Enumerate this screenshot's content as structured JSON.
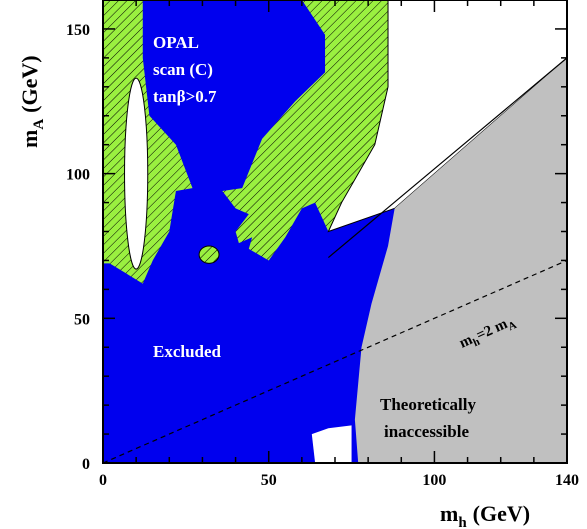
{
  "chart_data": {
    "type": "area",
    "title": "",
    "xlabel": "m",
    "xlabel_sub": "h",
    "xlabel_unit": "(GeV)",
    "ylabel": "m",
    "ylabel_sub": "A",
    "ylabel_unit": "(GeV)",
    "xlim": [
      0,
      140
    ],
    "ylim": [
      0,
      160
    ],
    "xticks": [
      "0",
      "50",
      "100",
      "140"
    ],
    "yticks": [
      "0",
      "50",
      "100",
      "150"
    ],
    "grid": false,
    "annotations": {
      "title_line1": "OPAL",
      "title_line2": "scan (C)",
      "title_line3": "tanβ>0.7",
      "excluded": "Excluded",
      "theory_line1": "Theoretically",
      "theory_line2": "inaccessible",
      "line_m": "m",
      "line_sub": "h",
      "line_rest": "=2 m",
      "line_sub2": "A"
    },
    "colors": {
      "excluded": "#0000ee",
      "hatched": "#9af040",
      "theory": "#c0c0c0"
    },
    "regions": {
      "theory": [
        [
          77,
          0
        ],
        [
          76,
          15
        ],
        [
          78,
          40
        ],
        [
          81,
          55
        ],
        [
          86,
          75
        ],
        [
          88,
          88
        ],
        [
          140,
          140
        ],
        [
          140,
          0
        ]
      ],
      "white_top_right": [
        [
          68,
          80
        ],
        [
          72,
          90
        ],
        [
          82,
          110
        ],
        [
          86,
          130
        ],
        [
          86,
          160
        ],
        [
          140,
          160
        ],
        [
          140,
          140
        ],
        [
          88,
          88
        ]
      ],
      "excluded_blue": [
        [
          0,
          69
        ],
        [
          2,
          69
        ],
        [
          12,
          62
        ],
        [
          15,
          70
        ],
        [
          20,
          80
        ],
        [
          22,
          94
        ],
        [
          30,
          92
        ],
        [
          35,
          90
        ],
        [
          40,
          88
        ],
        [
          44,
          86
        ],
        [
          40,
          80
        ],
        [
          41,
          76
        ],
        [
          45,
          78
        ],
        [
          44,
          74
        ],
        [
          50,
          70
        ],
        [
          55,
          78
        ],
        [
          60,
          88
        ],
        [
          64,
          90
        ],
        [
          66,
          85
        ],
        [
          67,
          74
        ],
        [
          70,
          72
        ],
        [
          72,
          70
        ],
        [
          86,
          80
        ],
        [
          88,
          88
        ],
        [
          80,
          55
        ],
        [
          78,
          40
        ],
        [
          76,
          15
        ],
        [
          75,
          5
        ],
        [
          68,
          9
        ],
        [
          63,
          8
        ],
        [
          64,
          0
        ],
        [
          0,
          0
        ]
      ],
      "hatched_left": [
        [
          0,
          160
        ],
        [
          12,
          160
        ],
        [
          12,
          140
        ],
        [
          14,
          120
        ],
        [
          22,
          110
        ],
        [
          27,
          95
        ],
        [
          22,
          94
        ],
        [
          20,
          80
        ],
        [
          15,
          70
        ],
        [
          12,
          62
        ],
        [
          2,
          69
        ],
        [
          0,
          69
        ]
      ],
      "hatched_right": [
        [
          45,
          160
        ],
        [
          60,
          160
        ],
        [
          67,
          148
        ],
        [
          67,
          135
        ],
        [
          58,
          125
        ],
        [
          48,
          112
        ],
        [
          42,
          95
        ],
        [
          36,
          94
        ],
        [
          40,
          88
        ],
        [
          44,
          86
        ],
        [
          40,
          80
        ],
        [
          41,
          76
        ],
        [
          45,
          78
        ],
        [
          44,
          74
        ],
        [
          50,
          70
        ],
        [
          55,
          78
        ],
        [
          60,
          88
        ],
        [
          64,
          90
        ],
        [
          66,
          85
        ],
        [
          68,
          80
        ],
        [
          72,
          90
        ],
        [
          82,
          110
        ],
        [
          86,
          130
        ],
        [
          86,
          160
        ],
        [
          60,
          160
        ]
      ],
      "white_oval_center": [
        10,
        100
      ],
      "white_oval_radius": [
        3.5,
        33
      ],
      "hatched_blob_center": [
        32,
        72
      ],
      "hatched_blob_radius": [
        3,
        3
      ],
      "white_notch": [
        [
          63,
          10
        ],
        [
          68,
          12
        ],
        [
          75,
          13
        ],
        [
          75,
          0
        ],
        [
          64,
          0
        ]
      ]
    },
    "dashed_line": {
      "label": "m_h=2 m_A",
      "x": [
        0,
        140
      ],
      "y": [
        0,
        70
      ]
    }
  }
}
